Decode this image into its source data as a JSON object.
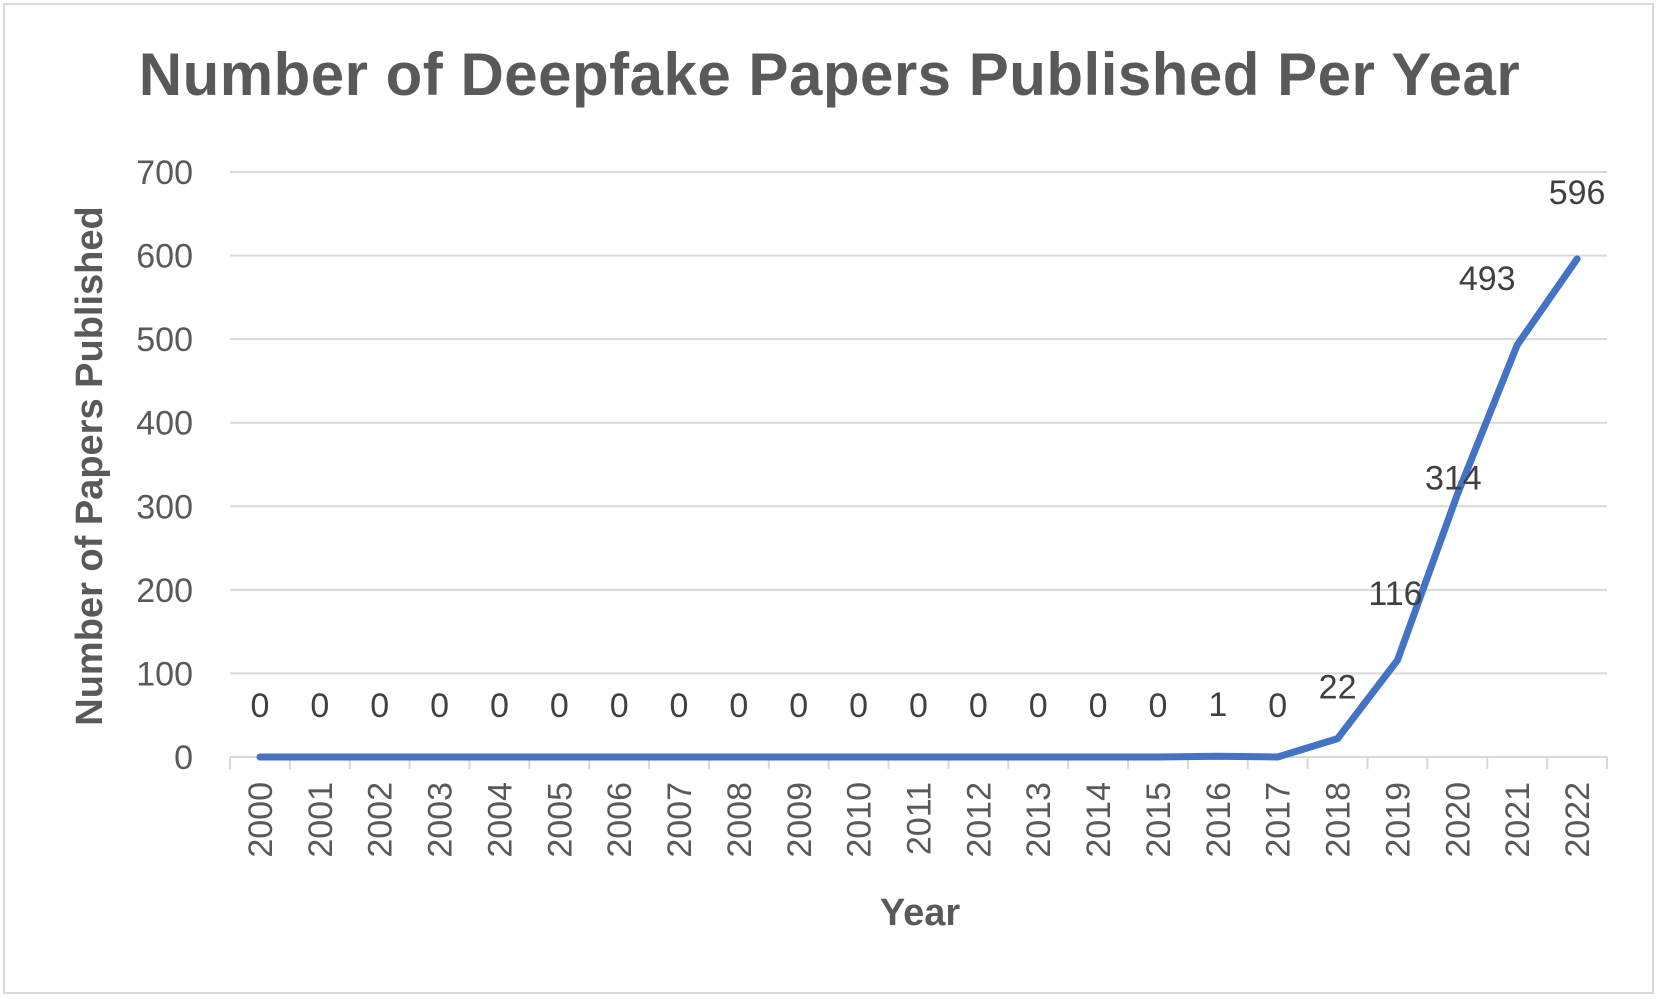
{
  "chart_data": {
    "type": "line",
    "title": "Number of Deepfake Papers Published Per Year",
    "xlabel": "Year",
    "ylabel": "Number of Papers Published",
    "categories": [
      "2000",
      "2001",
      "2002",
      "2003",
      "2004",
      "2005",
      "2006",
      "2007",
      "2008",
      "2009",
      "2010",
      "2011",
      "2012",
      "2013",
      "2014",
      "2015",
      "2016",
      "2017",
      "2018",
      "2019",
      "2020",
      "2021",
      "2022"
    ],
    "series": [
      {
        "values": [
          0,
          0,
          0,
          0,
          0,
          0,
          0,
          0,
          0,
          0,
          0,
          0,
          0,
          0,
          0,
          0,
          1,
          0,
          22,
          116,
          314,
          493,
          596
        ],
        "color": "#4472c4"
      }
    ],
    "ylim": [
      0,
      700
    ],
    "yticks": [
      0,
      100,
      200,
      300,
      400,
      500,
      600,
      700
    ],
    "grid": true,
    "legend": "none",
    "gridline_color": "#d9d9d9",
    "text_color": "#595959"
  }
}
